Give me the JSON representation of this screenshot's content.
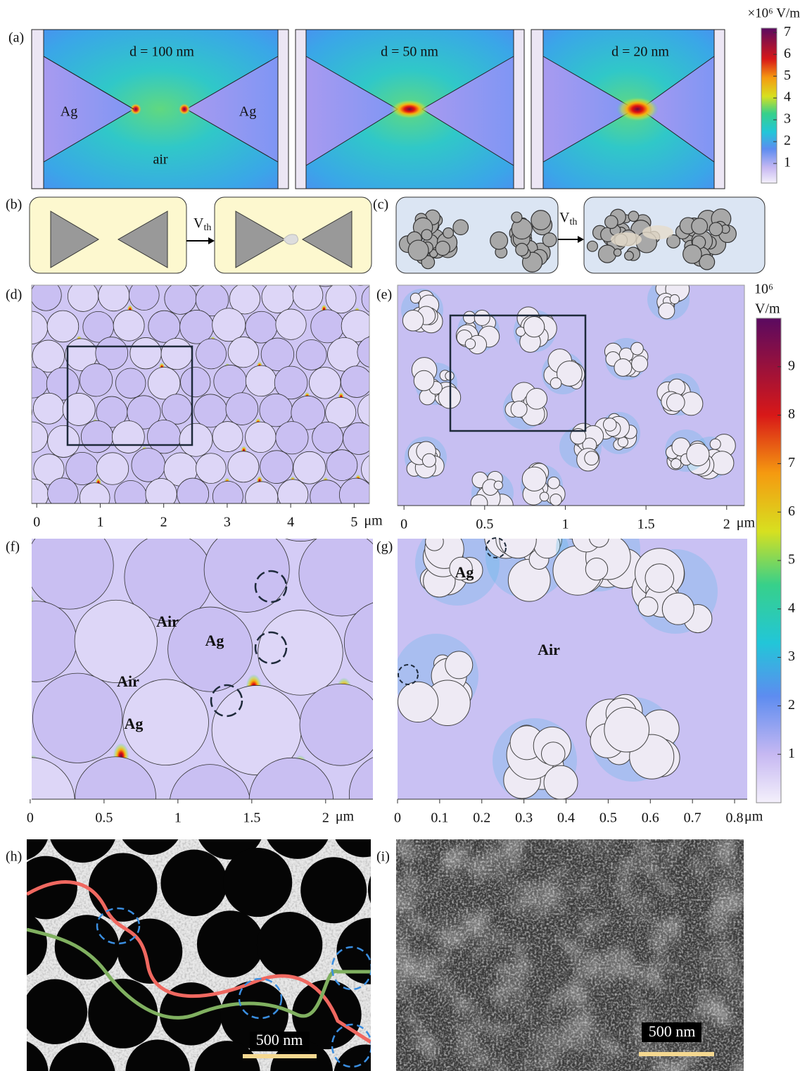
{
  "panel_labels": [
    "(a)",
    "(b)",
    "(c)",
    "(d)",
    "(e)",
    "(f)",
    "(g)",
    "(h)",
    "(i)"
  ],
  "a": {
    "gaps": [
      "d = 100 nm",
      "d = 50 nm",
      "d = 20 nm"
    ],
    "labels": [
      "Ag",
      "Ag",
      "air"
    ],
    "colorbar": {
      "unit": "×10⁶ V/m",
      "lim": [
        0.1,
        7.2
      ],
      "ticks": [
        1,
        2,
        3,
        4,
        5,
        6,
        7
      ]
    }
  },
  "b": {
    "arrow": {
      "base": "V",
      "sub": "th"
    }
  },
  "c": {
    "arrow": {
      "base": "V",
      "sub": "th"
    }
  },
  "d": {
    "xlim": [
      -0.08,
      5.24
    ],
    "xticks": [
      0,
      1,
      2,
      3,
      4,
      5
    ],
    "unit": "μm"
  },
  "e": {
    "xlim": [
      -0.04,
      2.11
    ],
    "xticks": [
      0,
      0.5,
      1,
      1.5,
      2
    ],
    "unit": "μm"
  },
  "colorbar": {
    "exponent": "10⁶",
    "unit": "V/m",
    "lim": [
      0,
      10
    ],
    "ticks": [
      1,
      2,
      3,
      4,
      5,
      6,
      7,
      8,
      9
    ]
  },
  "f": {
    "labels": [
      "Air",
      "Ag",
      "Air",
      "Ag"
    ],
    "xlim": [
      0.01,
      2.32
    ],
    "xticks": [
      0,
      0.5,
      1,
      1.5,
      2
    ],
    "unit": "μm"
  },
  "g": {
    "labels": [
      "Ag",
      "Air"
    ],
    "xlim": [
      0,
      0.83
    ],
    "xticks": [
      0,
      0.1,
      0.2,
      0.3,
      0.4,
      0.5,
      0.6,
      0.7,
      0.8
    ],
    "unit": "μm"
  },
  "h": {
    "scalebar": "500 nm"
  },
  "i": {
    "scalebar": "500 nm"
  }
}
